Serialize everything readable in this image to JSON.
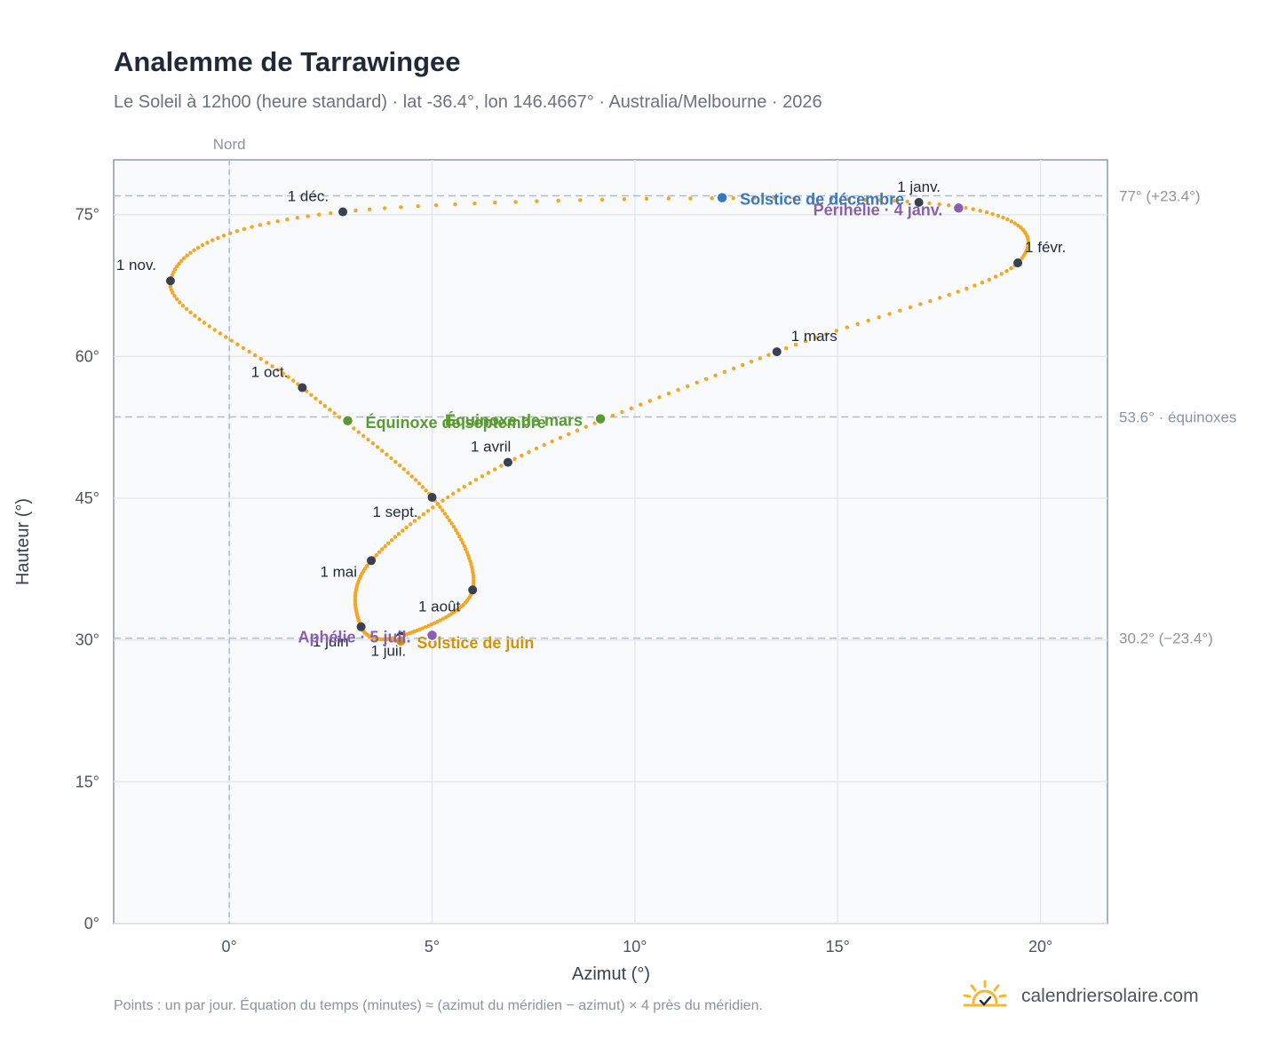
{
  "title": "Analemme de Tarrawingee",
  "subtitle": "Le Soleil à 12h00 (heure standard) · lat -36.4°, lon 146.4667° · Australia/Melbourne · 2026",
  "footnote": "Points : un par jour. Équation du temps (minutes) ≈ (azimut du méridien − azimut) × 4 près du méridien.",
  "brand": {
    "name": "calendriersolaire.com",
    "logo_icon": "sun-check-icon"
  },
  "colors": {
    "curve": "#f5a623",
    "month_marker": "#374151",
    "equinox": "#5a9a32",
    "december_solstice": "#3878c0",
    "june_solstice": "#d4920c",
    "apsis": "#8a5fb0",
    "reference_line": "#aebccb",
    "plot_background": "#f8fafc",
    "brand_sun": "#f5b82e"
  },
  "chart_data": {
    "type": "scatter",
    "xlabel": "Azimut (°)",
    "ylabel": "Hauteur (°)",
    "xlim": [
      -2.85,
      21.65
    ],
    "ylim": [
      0,
      80.8
    ],
    "xticks": [
      {
        "value": 0,
        "label": "0°"
      },
      {
        "value": 5,
        "label": "5°"
      },
      {
        "value": 10,
        "label": "10°"
      },
      {
        "value": 15,
        "label": "15°"
      },
      {
        "value": 20,
        "label": "20°"
      }
    ],
    "yticks": [
      {
        "value": 0,
        "label": "0°"
      },
      {
        "value": 15,
        "label": "15°"
      },
      {
        "value": 30,
        "label": "30°"
      },
      {
        "value": 45,
        "label": "45°"
      },
      {
        "value": 60,
        "label": "60°"
      },
      {
        "value": 75,
        "label": "75°"
      }
    ],
    "grid": true,
    "north_line": {
      "x": 0,
      "label": "Nord"
    },
    "reference_lines": [
      {
        "y": 77.0,
        "label": "77° (+23.4°)"
      },
      {
        "y": 53.6,
        "label": "53.6° · équinoxes"
      },
      {
        "y": 30.2,
        "label": "30.2° (−23.4°)"
      }
    ],
    "months": [
      {
        "label": "1 janv.",
        "x": 17.0,
        "y": 76.3
      },
      {
        "label": "1 févr.",
        "x": 19.44,
        "y": 69.9
      },
      {
        "label": "1 mars",
        "x": 13.5,
        "y": 60.5
      },
      {
        "label": "1 avril",
        "x": 6.87,
        "y": 48.8
      },
      {
        "label": "1 mai",
        "x": 3.5,
        "y": 38.4
      },
      {
        "label": "1 juin",
        "x": 3.25,
        "y": 31.4
      },
      {
        "label": "1 juil.",
        "x": 4.23,
        "y": 30.4
      },
      {
        "label": "1 août",
        "x": 6.0,
        "y": 35.3
      },
      {
        "label": "1 sept.",
        "x": 5.0,
        "y": 45.1
      },
      {
        "label": "1 oct.",
        "x": 1.8,
        "y": 56.7
      },
      {
        "label": "1 nov.",
        "x": -1.45,
        "y": 68.0
      },
      {
        "label": "1 déc.",
        "x": 2.8,
        "y": 75.3
      }
    ],
    "events": [
      {
        "label": "Solstice de décembre",
        "x": 12.15,
        "y": 76.8,
        "kind": "december_solstice"
      },
      {
        "label": "Périhélie · 4 janv.",
        "x": 17.98,
        "y": 75.7,
        "kind": "apsis"
      },
      {
        "label": "Équinoxe de mars",
        "x": 9.15,
        "y": 53.4,
        "kind": "equinox"
      },
      {
        "label": "Équinoxe de septembre",
        "x": 2.92,
        "y": 53.2,
        "kind": "equinox"
      },
      {
        "label": "Solstice de juin",
        "x": 4.23,
        "y": 29.9,
        "kind": "june_solstice"
      },
      {
        "label": "Aphélie · 5 juil.",
        "x": 5.0,
        "y": 30.5,
        "kind": "apsis"
      }
    ]
  }
}
